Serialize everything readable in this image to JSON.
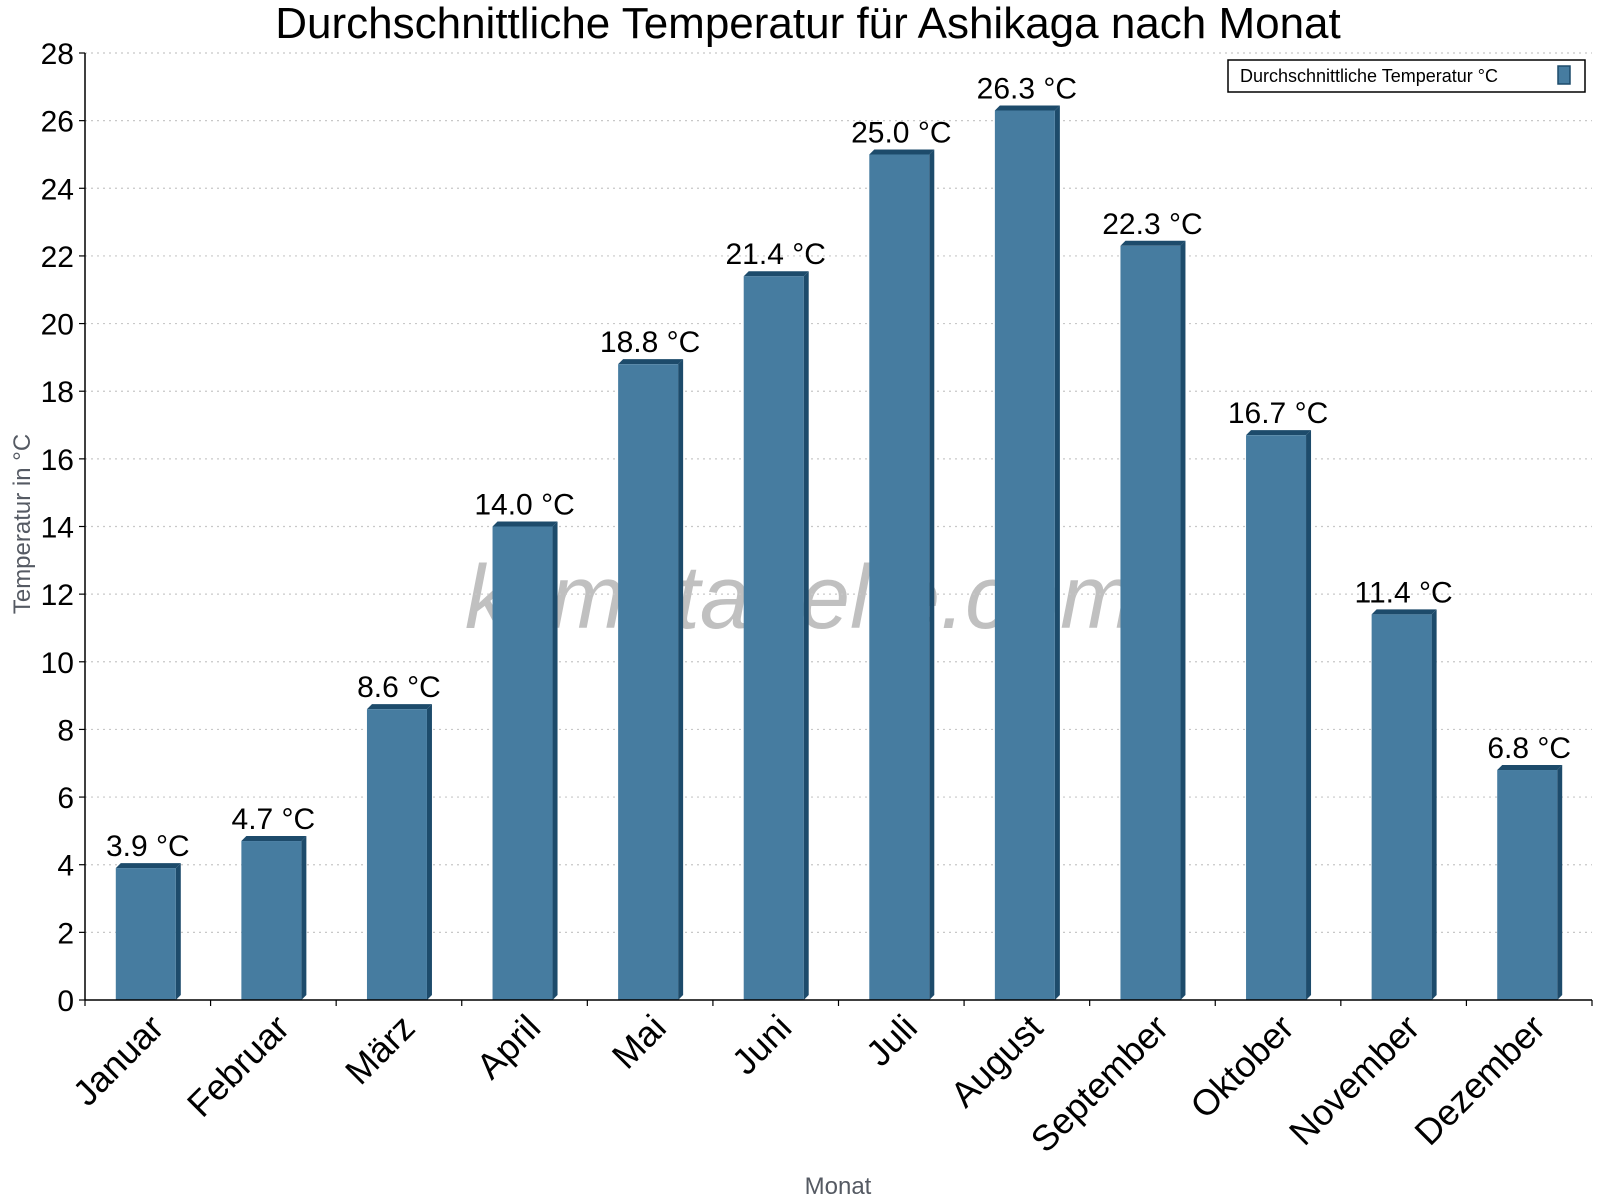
{
  "chart_data": {
    "type": "bar",
    "title": "Durchschnittliche Temperatur für Ashikaga nach Monat",
    "xlabel": "Monat",
    "ylabel": "Temperatur in °C",
    "categories": [
      "Januar",
      "Februar",
      "März",
      "April",
      "Mai",
      "Juni",
      "Juli",
      "August",
      "September",
      "Oktober",
      "November",
      "Dezember"
    ],
    "series": [
      {
        "name": "Durchschnittliche Temperatur °C",
        "values": [
          3.9,
          4.7,
          8.6,
          14.0,
          18.8,
          21.4,
          25.0,
          26.3,
          22.3,
          16.7,
          11.4,
          6.8
        ],
        "data_labels": [
          "3.9 °C",
          "4.7 °C",
          "8.6 °C",
          "14.0 °C",
          "18.8 °C",
          "21.4 °C",
          "25.0 °C",
          "26.3 °C",
          "22.3 °C",
          "16.7 °C",
          "11.4 °C",
          "6.8 °C"
        ],
        "color": "#467ca0",
        "edge_color": "#1d4b6b"
      }
    ],
    "ylim": [
      0,
      28
    ],
    "yticks": [
      0,
      2,
      4,
      6,
      8,
      10,
      12,
      14,
      16,
      18,
      20,
      22,
      24,
      26,
      28
    ],
    "grid": true,
    "legend_position": "top-right"
  },
  "watermark": "klimatabelle.com"
}
